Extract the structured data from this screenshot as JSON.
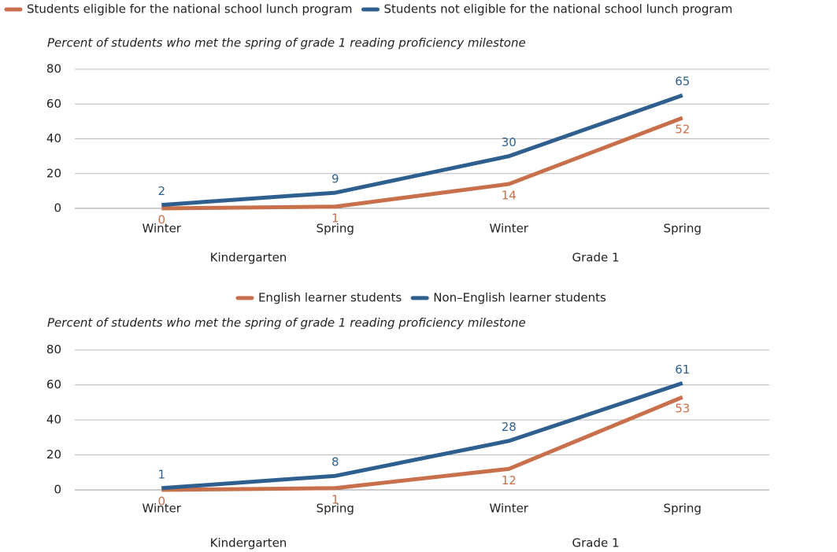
{
  "chart_data": [
    {
      "type": "line",
      "subtitle": "Percent of students who met the spring of grade 1 reading proficiency milestone",
      "categories": [
        "Winter",
        "Spring",
        "Winter",
        "Spring"
      ],
      "groups": [
        "Kindergarten",
        "Grade 1"
      ],
      "series": [
        {
          "name": "Students eligible for the national school lunch program",
          "color": "#c8704b",
          "values": [
            0,
            1,
            14,
            52
          ]
        },
        {
          "name": "Students not eligible for the national school lunch program",
          "color": "#2e5f8e",
          "values": [
            2,
            9,
            30,
            65
          ]
        }
      ],
      "ylim": [
        0,
        80
      ],
      "yticks": [
        0,
        20,
        40,
        60,
        80
      ],
      "grid": true,
      "legend": "top-left"
    },
    {
      "type": "line",
      "subtitle": "Percent of students who met the spring of grade 1 reading proficiency milestone",
      "categories": [
        "Winter",
        "Spring",
        "Winter",
        "Spring"
      ],
      "groups": [
        "Kindergarten",
        "Grade 1"
      ],
      "series": [
        {
          "name": "English learner students",
          "color": "#c8704b",
          "values": [
            0,
            1,
            12,
            53
          ]
        },
        {
          "name": "Non–English learner students",
          "color": "#2e5f8e",
          "values": [
            1,
            8,
            28,
            61
          ]
        }
      ],
      "ylim": [
        0,
        80
      ],
      "yticks": [
        0,
        20,
        40,
        60,
        80
      ],
      "grid": true,
      "legend": "top-center"
    }
  ]
}
